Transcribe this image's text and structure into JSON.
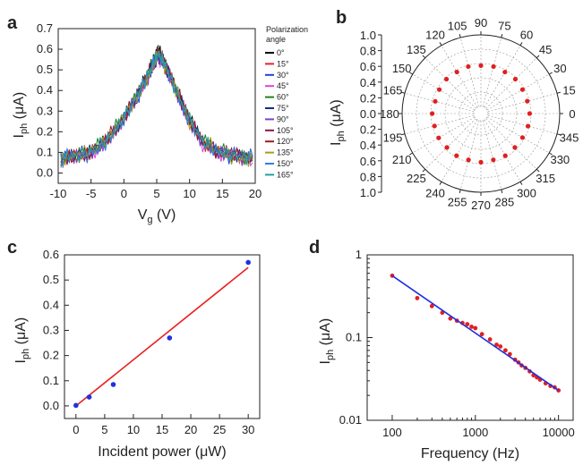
{
  "panel_labels": [
    "a",
    "b",
    "c",
    "d"
  ],
  "chart_data": [
    {
      "panel": "a",
      "type": "line",
      "xlabel": "V",
      "xlabel_sub": "g",
      "xlabel_unit": " (V)",
      "ylabel": "I",
      "ylabel_sub": "ph",
      "ylabel_unit": " (μA)",
      "xlim": [
        -10,
        20
      ],
      "ylim": [
        -0.05,
        0.7
      ],
      "xticks": [
        -10,
        -5,
        0,
        5,
        10,
        15,
        20
      ],
      "xtick_labels": [
        "-10",
        "-5",
        "0",
        "5",
        "10",
        "15",
        "20"
      ],
      "yticks": [
        0.0,
        0.1,
        0.2,
        0.3,
        0.4,
        0.5,
        0.6,
        0.7
      ],
      "ytick_labels": [
        "0.0",
        "0.1",
        "0.2",
        "0.3",
        "0.4",
        "0.5",
        "0.6",
        "0.7"
      ],
      "legend_title_lines": [
        "Polarization",
        "angle"
      ],
      "legend_position": "right",
      "x": [
        -9.6,
        -8.0,
        -6.0,
        -4.0,
        -2.0,
        0.0,
        2.0,
        3.5,
        4.5,
        5.2,
        6.0,
        7.0,
        8.5,
        10.0,
        12.0,
        14.0,
        16.0,
        18.0,
        19.6
      ],
      "series": [
        {
          "name": "0°",
          "color": "#000000",
          "values": [
            0.07,
            0.08,
            0.09,
            0.12,
            0.19,
            0.27,
            0.38,
            0.47,
            0.54,
            0.61,
            0.56,
            0.48,
            0.37,
            0.26,
            0.16,
            0.11,
            0.09,
            0.08,
            0.08
          ]
        },
        {
          "name": "15°",
          "color": "#e8202a",
          "values": [
            0.06,
            0.09,
            0.08,
            0.13,
            0.18,
            0.26,
            0.37,
            0.46,
            0.53,
            0.58,
            0.55,
            0.47,
            0.36,
            0.25,
            0.15,
            0.1,
            0.1,
            0.07,
            0.07
          ]
        },
        {
          "name": "30°",
          "color": "#2040e0",
          "values": [
            0.08,
            0.07,
            0.1,
            0.12,
            0.17,
            0.27,
            0.36,
            0.45,
            0.52,
            0.57,
            0.54,
            0.46,
            0.35,
            0.24,
            0.15,
            0.11,
            0.08,
            0.09,
            0.06
          ]
        },
        {
          "name": "45°",
          "color": "#e040e0",
          "values": [
            0.05,
            0.08,
            0.08,
            0.11,
            0.18,
            0.25,
            0.37,
            0.46,
            0.54,
            0.56,
            0.53,
            0.47,
            0.36,
            0.25,
            0.14,
            0.09,
            0.09,
            0.07,
            0.05
          ]
        },
        {
          "name": "60°",
          "color": "#208020",
          "values": [
            0.07,
            0.09,
            0.09,
            0.13,
            0.19,
            0.28,
            0.38,
            0.47,
            0.55,
            0.58,
            0.55,
            0.48,
            0.37,
            0.26,
            0.16,
            0.12,
            0.1,
            0.08,
            0.07
          ]
        },
        {
          "name": "75°",
          "color": "#1a2a80",
          "values": [
            0.06,
            0.08,
            0.1,
            0.12,
            0.18,
            0.26,
            0.36,
            0.46,
            0.53,
            0.57,
            0.54,
            0.47,
            0.36,
            0.25,
            0.15,
            0.11,
            0.09,
            0.08,
            0.06
          ]
        },
        {
          "name": "90°",
          "color": "#8040c0",
          "values": [
            0.08,
            0.08,
            0.09,
            0.11,
            0.17,
            0.27,
            0.37,
            0.45,
            0.52,
            0.56,
            0.53,
            0.46,
            0.35,
            0.24,
            0.15,
            0.1,
            0.08,
            0.07,
            0.07
          ]
        },
        {
          "name": "105°",
          "color": "#801a40",
          "values": [
            0.07,
            0.07,
            0.08,
            0.13,
            0.18,
            0.26,
            0.38,
            0.47,
            0.54,
            0.59,
            0.55,
            0.47,
            0.37,
            0.25,
            0.16,
            0.11,
            0.1,
            0.09,
            0.08
          ]
        },
        {
          "name": "120°",
          "color": "#a01a1a",
          "values": [
            0.06,
            0.09,
            0.09,
            0.12,
            0.19,
            0.27,
            0.37,
            0.46,
            0.53,
            0.57,
            0.54,
            0.48,
            0.36,
            0.26,
            0.15,
            0.1,
            0.09,
            0.08,
            0.07
          ]
        },
        {
          "name": "135°",
          "color": "#a0a020",
          "values": [
            0.07,
            0.08,
            0.1,
            0.12,
            0.18,
            0.28,
            0.36,
            0.45,
            0.52,
            0.58,
            0.53,
            0.46,
            0.37,
            0.24,
            0.16,
            0.12,
            0.08,
            0.07,
            0.06
          ]
        },
        {
          "name": "150°",
          "color": "#3080e0",
          "values": [
            0.08,
            0.09,
            0.08,
            0.11,
            0.17,
            0.26,
            0.37,
            0.46,
            0.54,
            0.57,
            0.55,
            0.47,
            0.35,
            0.25,
            0.15,
            0.11,
            0.1,
            0.08,
            0.08
          ]
        },
        {
          "name": "165°",
          "color": "#20a0a0",
          "values": [
            0.06,
            0.08,
            0.09,
            0.13,
            0.18,
            0.27,
            0.38,
            0.47,
            0.53,
            0.58,
            0.54,
            0.47,
            0.36,
            0.26,
            0.16,
            0.1,
            0.09,
            0.08,
            0.07
          ]
        }
      ]
    },
    {
      "panel": "b",
      "type": "scatter",
      "projection": "polar",
      "ylabel": "I",
      "ylabel_sub": "ph",
      "ylabel_unit": " (μA)",
      "rlim": [
        0,
        1.0
      ],
      "rticks": [
        0.0,
        0.2,
        0.4,
        0.6,
        0.8,
        1.0
      ],
      "radial_labels": [
        "1.0",
        "0.8",
        "0.6",
        "0.4",
        "0.2",
        "0.0",
        "0.2",
        "0.4",
        "0.6",
        "0.8",
        "1.0"
      ],
      "angular_ticks": [
        0,
        15,
        30,
        45,
        60,
        75,
        90,
        105,
        120,
        135,
        150,
        165,
        180,
        195,
        210,
        225,
        240,
        255,
        270,
        285,
        300,
        315,
        330,
        345
      ],
      "angular_labels": [
        "0",
        "15",
        "30",
        "45",
        "60",
        "75",
        "90",
        "105",
        "120",
        "135",
        "150",
        "165",
        "180",
        "195",
        "210",
        "225",
        "240",
        "255",
        "270",
        "285",
        "300",
        "315",
        "330",
        "345"
      ],
      "marker_color": "#e02020",
      "theta": [
        0,
        15,
        30,
        45,
        60,
        75,
        90,
        105,
        120,
        135,
        150,
        165,
        180,
        195,
        210,
        225,
        240,
        255,
        270,
        285,
        300,
        315,
        330,
        345
      ],
      "r": [
        0.58,
        0.57,
        0.57,
        0.58,
        0.57,
        0.58,
        0.57,
        0.58,
        0.57,
        0.58,
        0.57,
        0.56,
        0.58,
        0.57,
        0.58,
        0.57,
        0.58,
        0.57,
        0.58,
        0.57,
        0.58,
        0.57,
        0.57,
        0.58
      ]
    },
    {
      "panel": "c",
      "type": "scatter",
      "xlabel": "Incident power",
      "xlabel_unit": " (μW)",
      "ylabel": "I",
      "ylabel_sub": "ph",
      "ylabel_unit": " (μA)",
      "xlim": [
        -2,
        32
      ],
      "ylim": [
        -0.05,
        0.6
      ],
      "xticks": [
        0,
        5,
        10,
        15,
        20,
        25,
        30
      ],
      "xtick_labels": [
        "0",
        "5",
        "10",
        "15",
        "20",
        "25",
        "30"
      ],
      "yticks": [
        0.0,
        0.1,
        0.2,
        0.3,
        0.4,
        0.5,
        0.6
      ],
      "ytick_labels": [
        "0.0",
        "0.1",
        "0.2",
        "0.3",
        "0.4",
        "0.5",
        "0.6"
      ],
      "points": {
        "color": "#2030e0",
        "x": [
          0,
          2.3,
          6.5,
          16.3,
          30
        ],
        "y": [
          0.002,
          0.035,
          0.085,
          0.27,
          0.57
        ]
      },
      "fit": {
        "color": "#e82020",
        "x": [
          0,
          30
        ],
        "y": [
          0.0,
          0.55
        ]
      }
    },
    {
      "panel": "d",
      "type": "scatter",
      "xscale": "log",
      "yscale": "log",
      "xlabel": "Frequency",
      "xlabel_unit": " (Hz)",
      "ylabel": "I",
      "ylabel_sub": "ph",
      "ylabel_unit": " (μA)",
      "xlim": [
        50,
        15000
      ],
      "ylim": [
        0.01,
        1
      ],
      "xticks": [
        100,
        1000,
        10000
      ],
      "xtick_labels": [
        "100",
        "1000",
        "10000"
      ],
      "yticks": [
        0.01,
        0.1,
        1
      ],
      "ytick_labels": [
        "0.01",
        "0.1",
        "1"
      ],
      "points": {
        "color": "#e02020",
        "x": [
          100,
          200,
          300,
          400,
          500,
          600,
          700,
          800,
          900,
          1000,
          1200,
          1500,
          1800,
          2000,
          2300,
          2600,
          3000,
          3300,
          3600,
          4000,
          4500,
          5000,
          5500,
          6000,
          7000,
          8000,
          9000,
          10000
        ],
        "y": [
          0.56,
          0.3,
          0.24,
          0.2,
          0.17,
          0.16,
          0.15,
          0.145,
          0.135,
          0.13,
          0.11,
          0.095,
          0.082,
          0.078,
          0.07,
          0.063,
          0.054,
          0.05,
          0.046,
          0.043,
          0.039,
          0.035,
          0.033,
          0.031,
          0.028,
          0.026,
          0.025,
          0.023
        ]
      },
      "fit": {
        "color": "#2030e0",
        "x": [
          100,
          10000
        ],
        "y": [
          0.56,
          0.023
        ]
      }
    }
  ]
}
